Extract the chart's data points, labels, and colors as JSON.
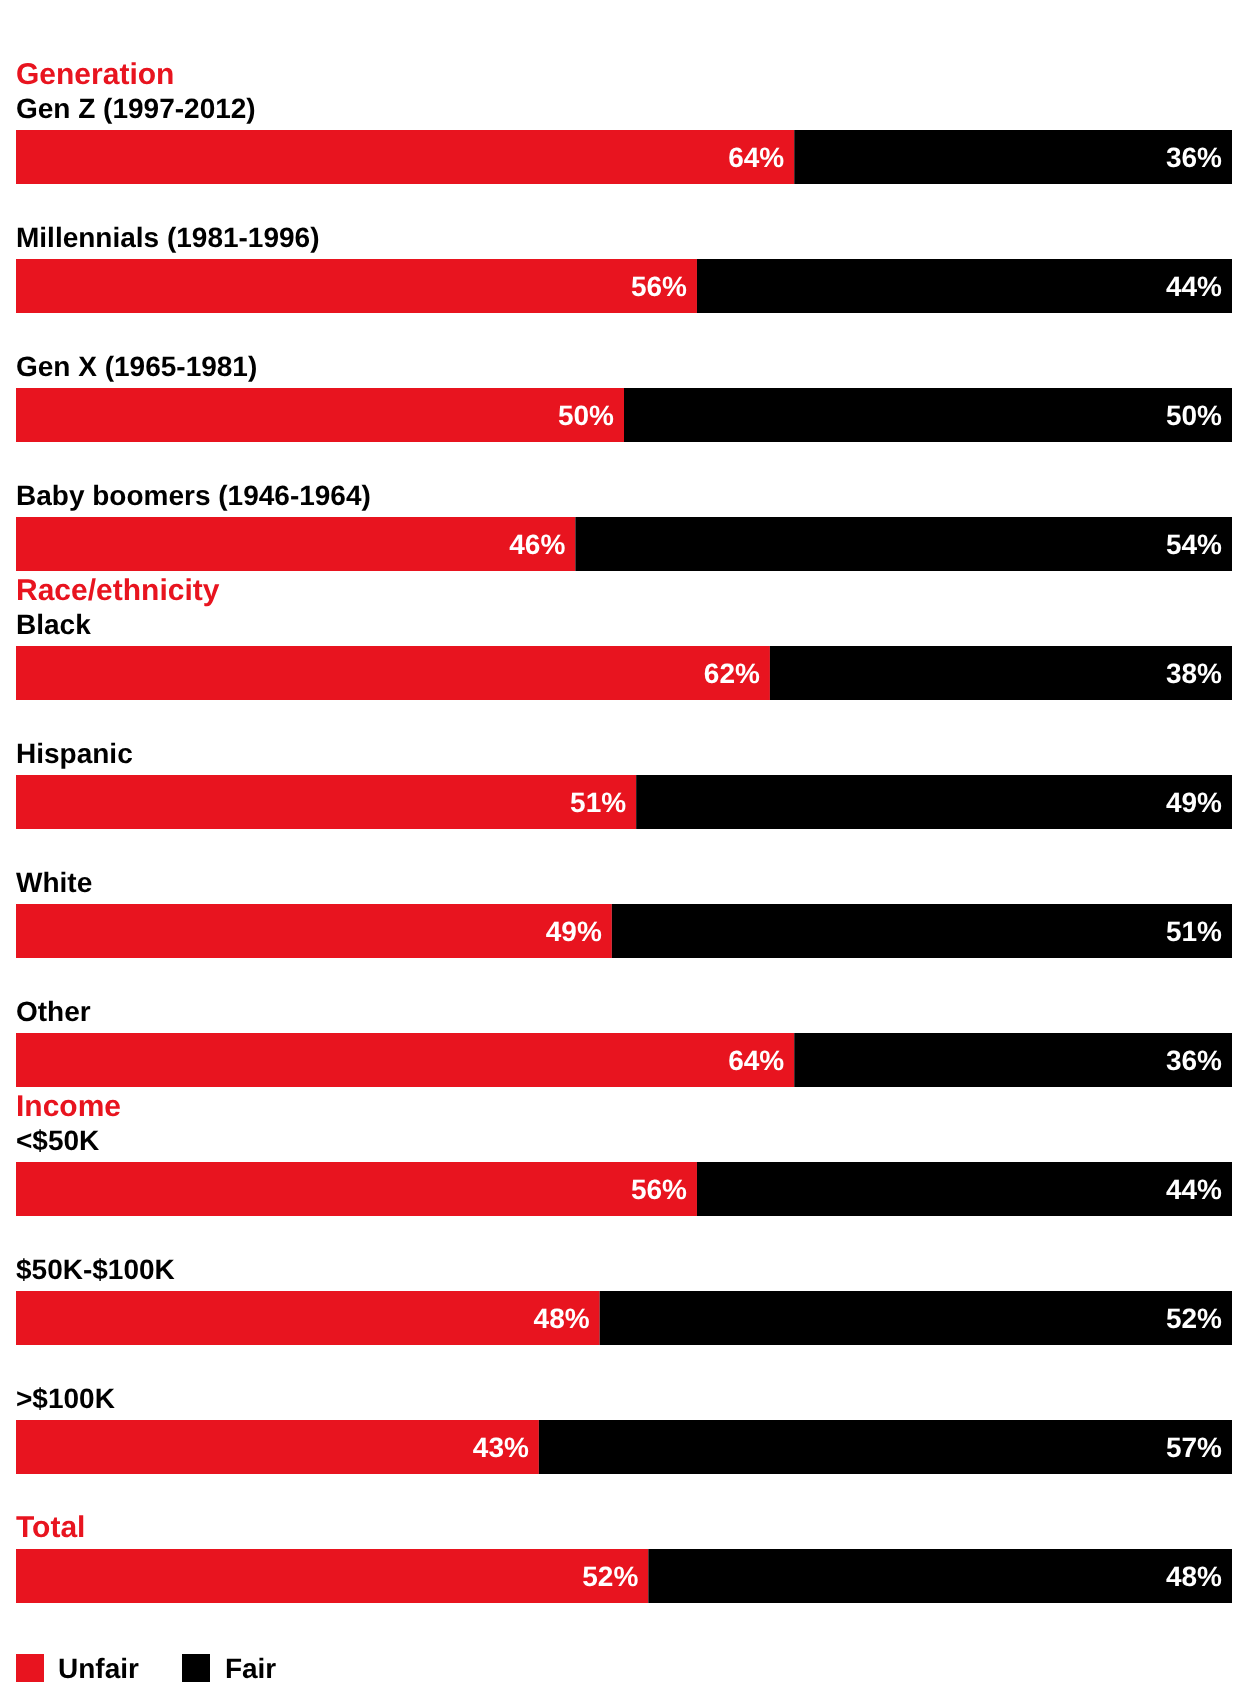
{
  "chart_data": {
    "type": "bar",
    "orientation": "horizontal",
    "stacked": true,
    "legend": "bottom left",
    "categories": [
      "Gen Z (1997-2012)",
      "Millennials (1981-1996)",
      "Gen X (1965-1981)",
      "Baby boomers (1946-1964)",
      "Black",
      "Hispanic",
      "White",
      "Other",
      "<$50K",
      "$50K-$100K",
      ">$100K",
      "Total"
    ],
    "series": [
      {
        "name": "Unfair",
        "color": "#e8141f",
        "values": [
          64,
          56,
          50,
          46,
          62,
          51,
          49,
          64,
          56,
          48,
          43,
          52
        ],
        "value_labels": [
          "64%",
          "56%",
          "50%",
          "46%",
          "62%",
          "51%",
          "49%",
          "64%",
          "56%",
          "48%",
          "43%",
          "52%"
        ]
      },
      {
        "name": "Fair",
        "color": "#000000",
        "values": [
          36,
          44,
          50,
          54,
          38,
          49,
          51,
          36,
          44,
          52,
          57,
          48
        ],
        "value_labels": [
          "36%",
          "44%",
          "50%",
          "54%",
          "38%",
          "49%",
          "51%",
          "36%",
          "44%",
          "52%",
          "57%",
          "48%"
        ]
      }
    ],
    "annotations": [
      "Generation",
      "Race/ethnicity",
      "Income"
    ]
  }
}
